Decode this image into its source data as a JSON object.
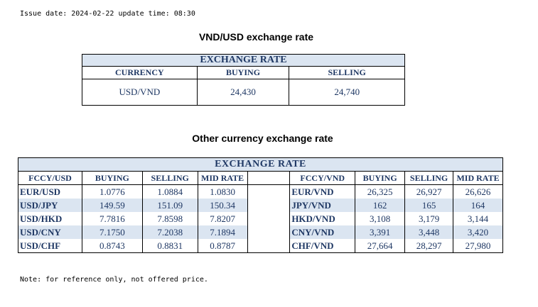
{
  "issue_line": "Issue date: 2024-02-22 update time: 08:30",
  "vnd_usd": {
    "heading": "VND/USD exchange rate",
    "table_title": "EXCHANGE RATE",
    "headers": [
      "CURRENCY",
      "BUYING",
      "SELLING"
    ],
    "row": [
      "USD/VND",
      "24,430",
      "24,740"
    ]
  },
  "other": {
    "heading": "Other currency exchange rate",
    "table_title": "EXCHANGE  RATE",
    "left_headers": [
      "FCCY/USD",
      "BUYING",
      "SELLING",
      "MID RATE"
    ],
    "right_headers": [
      "FCCY/VND",
      "BUYING",
      "SELLING",
      "MID RATE"
    ],
    "rows": [
      {
        "l": [
          "EUR/USD",
          "1.0776",
          "1.0884",
          "1.0830"
        ],
        "r": [
          "EUR/VND",
          "26,325",
          "26,927",
          "26,626"
        ]
      },
      {
        "l": [
          "USD/JPY",
          "149.59",
          "151.09",
          "150.34"
        ],
        "r": [
          "JPY/VND",
          "162",
          "165",
          "164"
        ]
      },
      {
        "l": [
          "USD/HKD",
          "7.7816",
          "7.8598",
          "7.8207"
        ],
        "r": [
          "HKD/VND",
          "3,108",
          "3,179",
          "3,144"
        ]
      },
      {
        "l": [
          "USD/CNY",
          "7.1750",
          "7.2038",
          "7.1894"
        ],
        "r": [
          "CNY/VND",
          "3,391",
          "3,448",
          "3,420"
        ]
      },
      {
        "l": [
          "USD/CHF",
          "0.8743",
          "0.8831",
          "0.8787"
        ],
        "r": [
          "CHF/VND",
          "27,664",
          "28,297",
          "27,980"
        ]
      }
    ]
  },
  "note": "Note: for reference only, not offered price."
}
